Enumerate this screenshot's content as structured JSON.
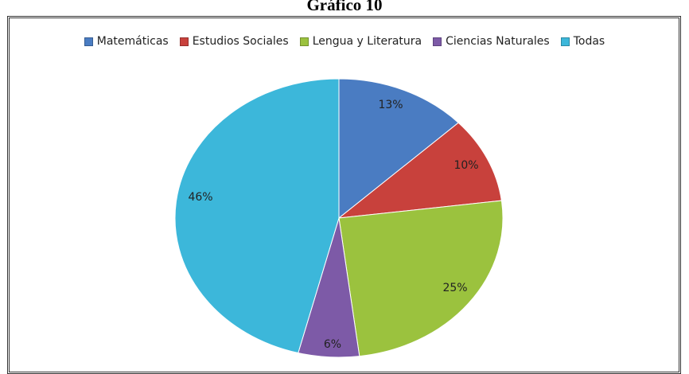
{
  "title": "Gráfico 10",
  "chart_data": {
    "type": "pie",
    "title": "Gráfico 10",
    "categories": [
      "Matemáticas",
      "Estudios Sociales",
      "Lengua y Literatura",
      "Ciencias Naturales",
      "Todas"
    ],
    "values": [
      13,
      10,
      25,
      6,
      46
    ],
    "labels": [
      "13%",
      "10%",
      "25%",
      "6%",
      "46%"
    ],
    "colors": [
      "#4a7cc2",
      "#c8413c",
      "#9bc23e",
      "#7d5aa7",
      "#3cb7da"
    ],
    "legend_position": "top"
  }
}
